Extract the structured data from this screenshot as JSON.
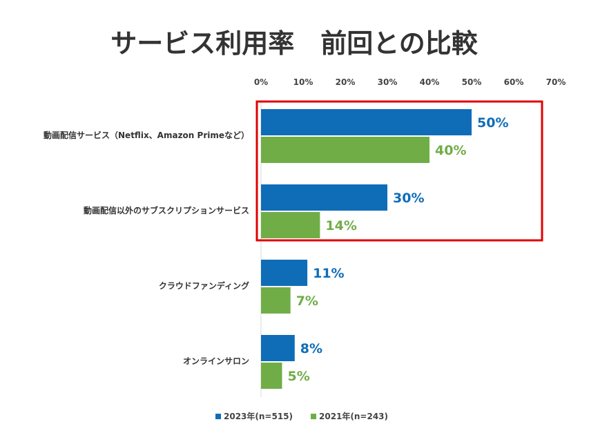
{
  "chart_data": {
    "type": "bar",
    "orientation": "horizontal",
    "title": "サービス利用率　前回との比較",
    "xlim": [
      0,
      70
    ],
    "tick_values": [
      0,
      10,
      20,
      30,
      40,
      50,
      60,
      70
    ],
    "tick_labels": [
      "0%",
      "10%",
      "20%",
      "30%",
      "40%",
      "50%",
      "60%",
      "70%"
    ],
    "categories": [
      "動画配信サービス（Netflix、Amazon Primeなど）",
      "動画配信以外のサブスクリプションサービス",
      "クラウドファンディング",
      "オンラインサロン"
    ],
    "series": [
      {
        "name": "2023年(n=515)",
        "color": "#0F6DB8",
        "values": [
          50,
          30,
          11,
          8
        ],
        "labels": [
          "50%",
          "30%",
          "11%",
          "8%"
        ]
      },
      {
        "name": "2021年(n=243)",
        "color": "#70AD47",
        "values": [
          40,
          14,
          7,
          5
        ],
        "labels": [
          "40%",
          "14%",
          "7%",
          "5%"
        ]
      }
    ],
    "highlight": {
      "categories": [
        0,
        1
      ],
      "color": "#E00000"
    },
    "grid": false,
    "legend_position": "bottom"
  }
}
